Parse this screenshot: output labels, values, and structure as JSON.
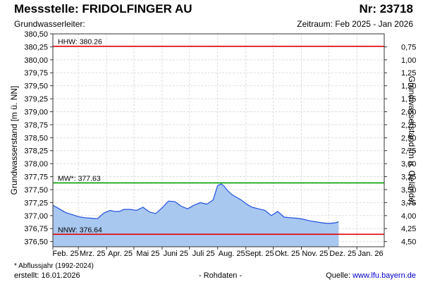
{
  "header": {
    "title": "Messstelle: FRIDOLFINGER AU",
    "station_number": "Nr: 23718",
    "aquifer_label": "Grundwasserleiter:",
    "period": "Zeitraum: Feb 2025 - Jan 2026"
  },
  "footer": {
    "footnote": "* Abflussjahr (1992-2024)",
    "created": "erstellt:  16.01.2026",
    "raw_data": "- Rohdaten -",
    "source_label": "Quelle:",
    "source_url": "www.lfu.bayern.de"
  },
  "chart_data": {
    "type": "area",
    "ylabel": "Grundwasserstand [m ü. NN]",
    "y2label": "Grundwasserstand [m u. Gelände]",
    "ylim": [
      376.4,
      380.5
    ],
    "y_ticks": [
      "380,50",
      "380,25",
      "380,00",
      "379,75",
      "379,50",
      "379,25",
      "379,00",
      "378,75",
      "378,50",
      "378,25",
      "378,00",
      "377,75",
      "377,50",
      "377,25",
      "377,00",
      "376,75",
      "376,50"
    ],
    "y2_ticks": [
      "0,75",
      "1,00",
      "1,25",
      "1,50",
      "1,75",
      "2,00",
      "2,25",
      "2,50",
      "2,75",
      "3,00",
      "3,25",
      "3,50",
      "3,75",
      "4,00",
      "4,25",
      "4,50"
    ],
    "x_ticks": [
      "Feb. 25",
      "Mrz. 25",
      "Apr. 25",
      "Mai 25",
      "Juni 25",
      "Juli 25",
      "Aug. 25",
      "Sept. 25",
      "Okt. 25",
      "Nov. 25",
      "Dez. 25",
      "Jan. 26"
    ],
    "grid": true,
    "reference_lines": [
      {
        "label": "HHW: 380.26",
        "value": 380.26,
        "color": "#e00000"
      },
      {
        "label": "MW*: 377.63",
        "value": 377.63,
        "color": "#00a000"
      },
      {
        "label": "NNW: 376.64",
        "value": 376.64,
        "color": "#e00000"
      }
    ],
    "series": [
      {
        "color": "#2050e0",
        "fill": "#a9c8f0",
        "x": [
          "2025-02-01",
          "2025-02-08",
          "2025-02-15",
          "2025-02-22",
          "2025-03-01",
          "2025-03-08",
          "2025-03-15",
          "2025-03-22",
          "2025-03-29",
          "2025-04-05",
          "2025-04-10",
          "2025-04-15",
          "2025-04-20",
          "2025-04-27",
          "2025-05-04",
          "2025-05-11",
          "2025-05-18",
          "2025-05-25",
          "2025-06-01",
          "2025-06-08",
          "2025-06-15",
          "2025-06-22",
          "2025-06-29",
          "2025-07-06",
          "2025-07-13",
          "2025-07-20",
          "2025-07-27",
          "2025-08-01",
          "2025-08-05",
          "2025-08-08",
          "2025-08-12",
          "2025-08-17",
          "2025-08-22",
          "2025-08-27",
          "2025-09-02",
          "2025-09-08",
          "2025-09-15",
          "2025-09-22",
          "2025-09-29",
          "2025-10-06",
          "2025-10-13",
          "2025-10-20",
          "2025-10-27",
          "2025-11-03",
          "2025-11-10",
          "2025-11-17",
          "2025-11-24",
          "2025-12-01",
          "2025-12-08",
          "2025-12-12"
        ],
        "values": [
          377.2,
          377.13,
          377.06,
          377.02,
          376.98,
          376.96,
          376.95,
          376.94,
          377.05,
          377.1,
          377.08,
          377.08,
          377.12,
          377.12,
          377.1,
          377.16,
          377.07,
          377.04,
          377.15,
          377.28,
          377.27,
          377.18,
          377.13,
          377.2,
          377.25,
          377.22,
          377.3,
          377.58,
          377.61,
          377.57,
          377.48,
          377.4,
          377.35,
          377.3,
          377.22,
          377.16,
          377.13,
          377.1,
          377.0,
          377.08,
          376.97,
          376.96,
          376.95,
          376.93,
          376.9,
          376.88,
          376.86,
          376.85,
          376.86,
          376.88
        ]
      }
    ]
  }
}
